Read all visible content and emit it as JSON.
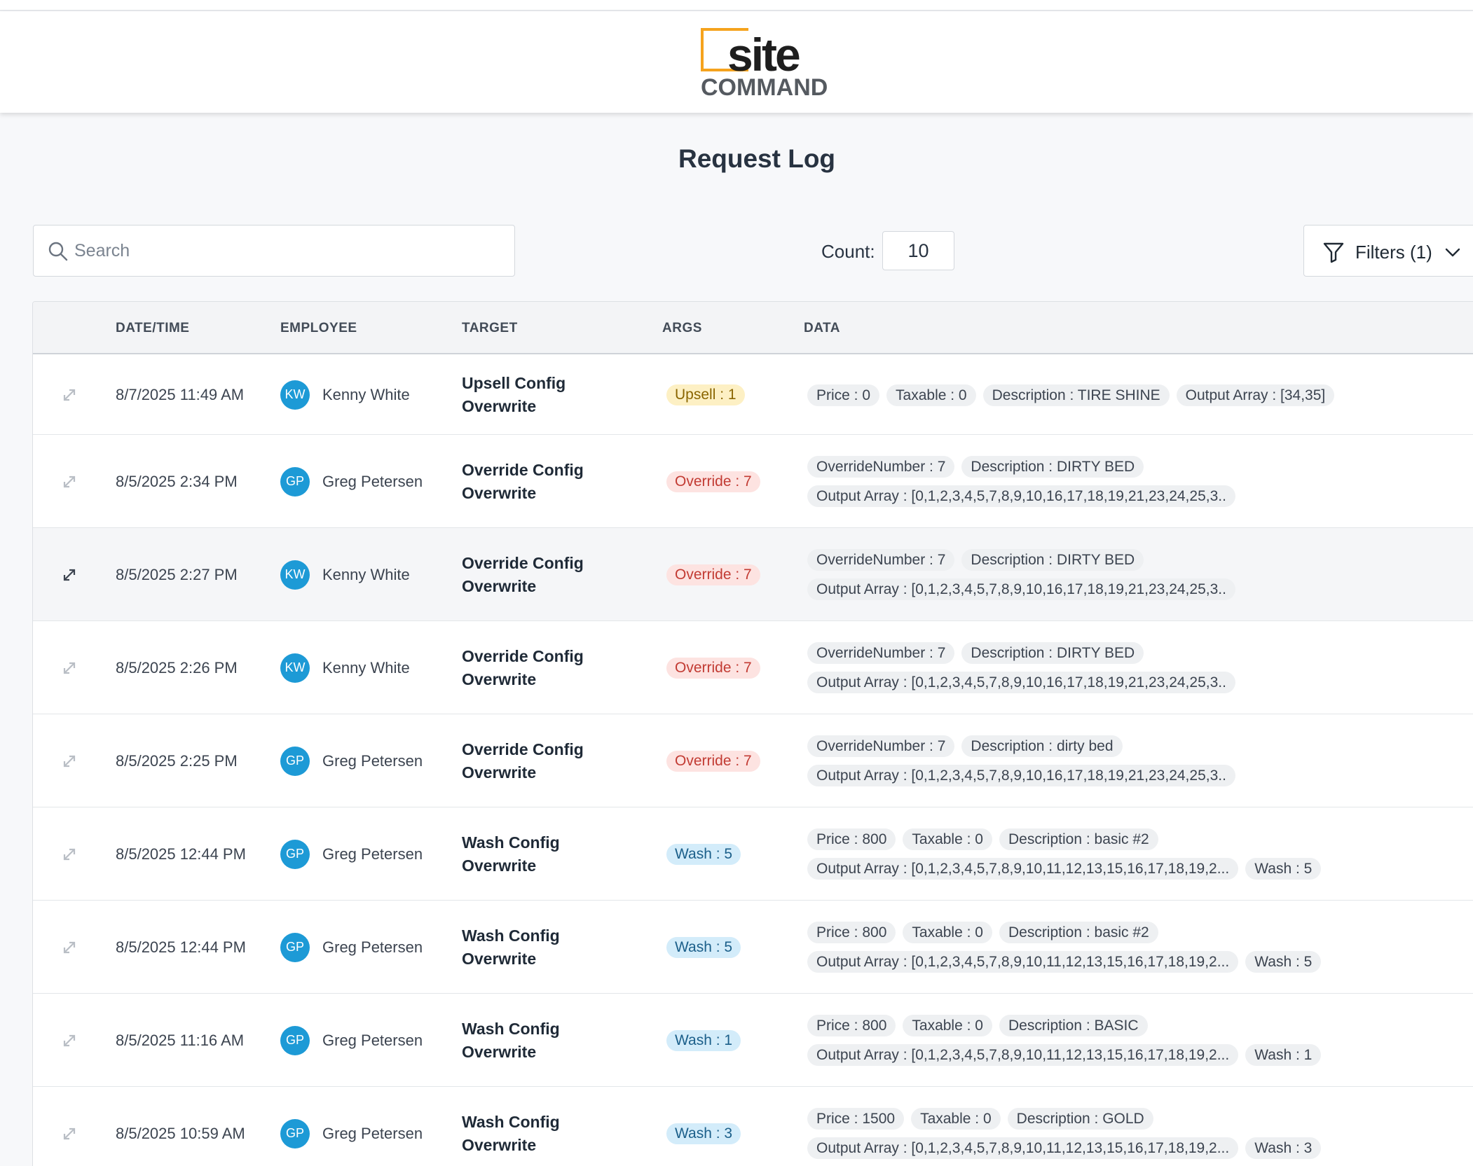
{
  "header": {
    "logo_top": "site",
    "logo_bottom": "COMMAND"
  },
  "page_title": "Request Log",
  "search": {
    "placeholder": "Search"
  },
  "count": {
    "label": "Count:",
    "value": "10"
  },
  "filters": {
    "label": "Filters (1)"
  },
  "table": {
    "headers": [
      "DATE/TIME",
      "EMPLOYEE",
      "TARGET",
      "ARGS",
      "DATA"
    ],
    "rows": [
      {
        "date": "8/7/2025 11:49 AM",
        "initials": "KW",
        "employee": "Kenny White",
        "target1": "Upsell Config",
        "target2": "Overwrite",
        "arg": "Upsell : 1",
        "data1": [
          "Price : 0",
          "Taxable : 0",
          "Description : TIRE SHINE",
          "Output Array : [34,35]"
        ],
        "data2": []
      },
      {
        "date": "8/5/2025 2:34 PM",
        "initials": "GP",
        "employee": "Greg Petersen",
        "target1": "Override Config",
        "target2": "Overwrite",
        "arg": "Override : 7",
        "data1": [
          "OverrideNumber : 7",
          "Description : DIRTY BED"
        ],
        "data2": [
          "Output Array : [0,1,2,3,4,5,7,8,9,10,16,17,18,19,21,23,24,25,3.."
        ]
      },
      {
        "date": "8/5/2025 2:27 PM",
        "initials": "KW",
        "employee": "Kenny White",
        "target1": "Override Config",
        "target2": "Overwrite",
        "arg": "Override : 7",
        "data1": [
          "OverrideNumber : 7",
          "Description : DIRTY BED"
        ],
        "data2": [
          "Output Array : [0,1,2,3,4,5,7,8,9,10,16,17,18,19,21,23,24,25,3.."
        ]
      },
      {
        "date": "8/5/2025 2:26 PM",
        "initials": "KW",
        "employee": "Kenny White",
        "target1": "Override Config",
        "target2": "Overwrite",
        "arg": "Override : 7",
        "data1": [
          "OverrideNumber : 7",
          "Description : DIRTY BED"
        ],
        "data2": [
          "Output Array : [0,1,2,3,4,5,7,8,9,10,16,17,18,19,21,23,24,25,3.."
        ]
      },
      {
        "date": "8/5/2025 2:25 PM",
        "initials": "GP",
        "employee": "Greg Petersen",
        "target1": "Override Config",
        "target2": "Overwrite",
        "arg": "Override : 7",
        "data1": [
          "OverrideNumber : 7",
          "Description : dirty bed"
        ],
        "data2": [
          "Output Array : [0,1,2,3,4,5,7,8,9,10,16,17,18,19,21,23,24,25,3.."
        ]
      },
      {
        "date": "8/5/2025 12:44 PM",
        "initials": "GP",
        "employee": "Greg Petersen",
        "target1": "Wash Config",
        "target2": "Overwrite",
        "arg": "Wash : 5",
        "data1": [
          "Price : 800",
          "Taxable : 0",
          "Description : basic #2"
        ],
        "data2": [
          "Output Array : [0,1,2,3,4,5,7,8,9,10,11,12,13,15,16,17,18,19,2...",
          "Wash : 5"
        ]
      },
      {
        "date": "8/5/2025 12:44 PM",
        "initials": "GP",
        "employee": "Greg Petersen",
        "target1": "Wash Config",
        "target2": "Overwrite",
        "arg": "Wash : 5",
        "data1": [
          "Price : 800",
          "Taxable : 0",
          "Description : basic #2"
        ],
        "data2": [
          "Output Array : [0,1,2,3,4,5,7,8,9,10,11,12,13,15,16,17,18,19,2...",
          "Wash : 5"
        ]
      },
      {
        "date": "8/5/2025 11:16 AM",
        "initials": "GP",
        "employee": "Greg Petersen",
        "target1": "Wash Config",
        "target2": "Overwrite",
        "arg": "Wash : 1",
        "data1": [
          "Price : 800",
          "Taxable : 0",
          "Description : BASIC"
        ],
        "data2": [
          "Output Array : [0,1,2,3,4,5,7,8,9,10,11,12,13,15,16,17,18,19,2...",
          "Wash : 1"
        ]
      },
      {
        "date": "8/5/2025 10:59 AM",
        "initials": "GP",
        "employee": "Greg Petersen",
        "target1": "Wash Config",
        "target2": "Overwrite",
        "arg": "Wash : 3",
        "data1": [
          "Price : 1500",
          "Taxable : 0",
          "Description : GOLD"
        ],
        "data2": [
          "Output Array : [0,1,2,3,4,5,7,8,9,10,11,12,13,15,16,17,18,19,2...",
          "Wash : 3"
        ]
      }
    ]
  },
  "colors": {
    "accent": "#f5a31d",
    "avatar": "#1d9ad6",
    "upsell_badge": "#fdf0c4",
    "override_badge": "#fde3e1",
    "wash_badge": "#d3ecfa"
  }
}
